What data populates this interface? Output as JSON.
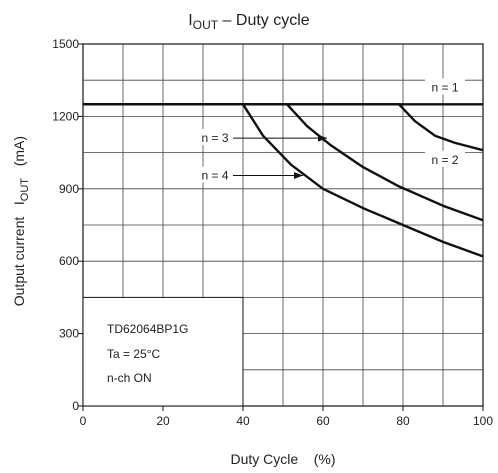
{
  "chart_data": {
    "type": "line",
    "title": {
      "main": "I",
      "sub": "OUT",
      "rest": " – Duty cycle"
    },
    "xlabel": "Duty Cycle    (%)",
    "ylabel": {
      "pre": "Output current   I",
      "sub": "OUT",
      "post": "   (mA)"
    },
    "xlim": [
      0,
      100
    ],
    "ylim": [
      0,
      1500
    ],
    "x_ticks": [
      0,
      20,
      40,
      60,
      80,
      100
    ],
    "y_ticks": [
      0,
      300,
      600,
      900,
      1200,
      1500
    ],
    "grid": true,
    "series": [
      {
        "name": "n = 1",
        "x": [
          0,
          100
        ],
        "y": [
          1250,
          1250
        ]
      },
      {
        "name": "n = 2",
        "x": [
          0,
          79,
          83,
          88,
          93,
          100
        ],
        "y": [
          1250,
          1250,
          1180,
          1120,
          1090,
          1060
        ]
      },
      {
        "name": "n = 3",
        "x": [
          0,
          51,
          56,
          62,
          70,
          79,
          90,
          100
        ],
        "y": [
          1250,
          1250,
          1160,
          1080,
          990,
          910,
          830,
          770
        ]
      },
      {
        "name": "n = 4",
        "x": [
          0,
          40,
          45,
          52,
          60,
          70,
          80,
          90,
          100
        ],
        "y": [
          1250,
          1250,
          1120,
          1000,
          900,
          820,
          750,
          680,
          620
        ]
      }
    ],
    "annotation": {
      "device": "TD62064BP1G",
      "temperature": "Ta = 25°C",
      "mode": "n-ch ON"
    }
  }
}
